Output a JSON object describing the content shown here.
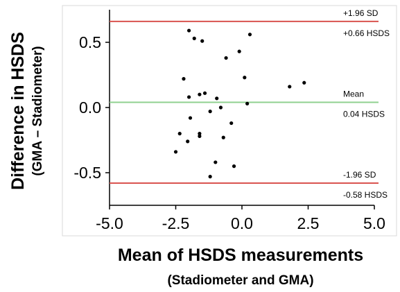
{
  "chart_data": {
    "type": "scatter",
    "title": "",
    "xlabel": "Mean of HSDS measurements",
    "xlabel_sub": "(Stadiometer and GMA)",
    "ylabel": "Difference in HSDS",
    "ylabel_sub": "(GMA – Stadiometer)",
    "xlim": [
      -5.0,
      5.0
    ],
    "ylim": [
      -0.75,
      0.75
    ],
    "x_ticks": [
      "-5.0",
      "-2.5",
      "0.0",
      "2.5",
      "5.0"
    ],
    "y_ticks": [
      "-0.5",
      "0.0",
      "0.5"
    ],
    "grid": false,
    "series": [
      {
        "points": [
          {
            "x": -2.0,
            "y": 0.59
          },
          {
            "x": -1.8,
            "y": 0.53
          },
          {
            "x": -1.5,
            "y": 0.51
          },
          {
            "x": 0.3,
            "y": 0.56
          },
          {
            "x": -0.1,
            "y": 0.43
          },
          {
            "x": -0.6,
            "y": 0.38
          },
          {
            "x": -2.2,
            "y": 0.22
          },
          {
            "x": 0.1,
            "y": 0.23
          },
          {
            "x": 2.35,
            "y": 0.19
          },
          {
            "x": 1.8,
            "y": 0.16
          },
          {
            "x": -1.6,
            "y": 0.1
          },
          {
            "x": -1.4,
            "y": 0.11
          },
          {
            "x": -2.0,
            "y": 0.08
          },
          {
            "x": -0.95,
            "y": 0.07
          },
          {
            "x": 0.2,
            "y": 0.03
          },
          {
            "x": -0.8,
            "y": 0.0
          },
          {
            "x": -1.2,
            "y": -0.03
          },
          {
            "x": -1.95,
            "y": -0.08
          },
          {
            "x": -0.4,
            "y": -0.12
          },
          {
            "x": -2.35,
            "y": -0.2
          },
          {
            "x": -1.6,
            "y": -0.2
          },
          {
            "x": -1.6,
            "y": -0.22
          },
          {
            "x": -0.7,
            "y": -0.23
          },
          {
            "x": -2.05,
            "y": -0.26
          },
          {
            "x": -2.5,
            "y": -0.34
          },
          {
            "x": -1.0,
            "y": -0.42
          },
          {
            "x": -0.3,
            "y": -0.45
          },
          {
            "x": -1.2,
            "y": -0.53
          }
        ]
      }
    ],
    "reference_lines": [
      {
        "y": 0.66,
        "label_top": "+1.96 SD",
        "label_bottom": "+0.66 HSDS",
        "color": "#d9534f"
      },
      {
        "y": 0.04,
        "label_top": "Mean",
        "label_bottom": "0.04 HSDS",
        "color": "#8fd18f"
      },
      {
        "y": -0.58,
        "label_top": "-1.96 SD",
        "label_bottom": "-0.58 HSDS",
        "color": "#d9534f"
      }
    ]
  }
}
